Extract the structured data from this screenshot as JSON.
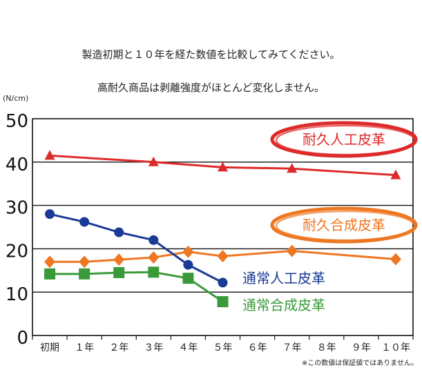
{
  "header": {
    "line1": "製造初期と１０年を経た数値を比較してみてください。",
    "line2": "高耐久商品は剥離強度がほとんど変化しません。"
  },
  "footnote": "※この数値は保証値ではありません。",
  "chart_data": {
    "type": "line",
    "title": "",
    "ylabel": "(N/cm)",
    "xlabel": "",
    "ylim": [
      0,
      50
    ],
    "yticks": [
      0,
      10,
      20,
      30,
      40,
      50
    ],
    "grid": true,
    "categories": [
      "初期",
      "１年",
      "２年",
      "３年",
      "４年",
      "５年",
      "６年",
      "７年",
      "８年",
      "９年",
      "１０年"
    ],
    "series": [
      {
        "name": "耐久人工皮革",
        "color": "#dd2a2a",
        "marker": "triangle",
        "highlight": "ellipse",
        "points": [
          [
            0,
            41.5
          ],
          [
            3,
            40
          ],
          [
            5,
            38.8
          ],
          [
            7,
            38.5
          ],
          [
            10,
            37
          ]
        ]
      },
      {
        "name": "耐久合成皮革",
        "color": "#ee7722",
        "marker": "diamond",
        "highlight": "ellipse",
        "points": [
          [
            0,
            17
          ],
          [
            1,
            17
          ],
          [
            2,
            17.5
          ],
          [
            3,
            18
          ],
          [
            4,
            19.3
          ],
          [
            5,
            18.3
          ],
          [
            7,
            19.5
          ],
          [
            10,
            17.6
          ]
        ]
      },
      {
        "name": "通常人工皮革",
        "color": "#1a3a96",
        "marker": "circle",
        "highlight": "none",
        "points": [
          [
            0,
            28
          ],
          [
            1,
            26.2
          ],
          [
            2,
            23.8
          ],
          [
            3,
            22
          ],
          [
            4,
            16.3
          ],
          [
            5,
            12.2
          ]
        ]
      },
      {
        "name": "通常合成皮革",
        "color": "#3a9a3a",
        "marker": "square",
        "highlight": "none",
        "points": [
          [
            0,
            14.2
          ],
          [
            1,
            14.2
          ],
          [
            2,
            14.5
          ],
          [
            3,
            14.6
          ],
          [
            4,
            13.2
          ],
          [
            5,
            7.8
          ]
        ]
      }
    ]
  }
}
